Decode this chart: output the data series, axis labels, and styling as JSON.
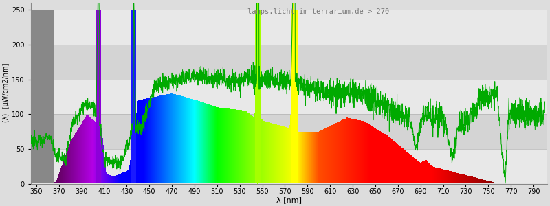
{
  "title": "lamps.licht-im-terrarium.de > 270",
  "xlabel": "λ [nm]",
  "ylabel": "I(λ)  [μW/cm2/nm]",
  "xlim": [
    345,
    802
  ],
  "ylim": [
    0,
    260
  ],
  "yticks": [
    0,
    50,
    100,
    150,
    200,
    250
  ],
  "xticks": [
    350,
    370,
    390,
    410,
    430,
    450,
    470,
    490,
    510,
    530,
    550,
    570,
    590,
    610,
    630,
    650,
    670,
    690,
    710,
    730,
    750,
    770,
    790
  ],
  "background_color": "#dddddd",
  "line_color": "#00aa00",
  "title_color": "#777777",
  "grid_band_color": "#cccccc",
  "white_band_color": "#eeeeee"
}
